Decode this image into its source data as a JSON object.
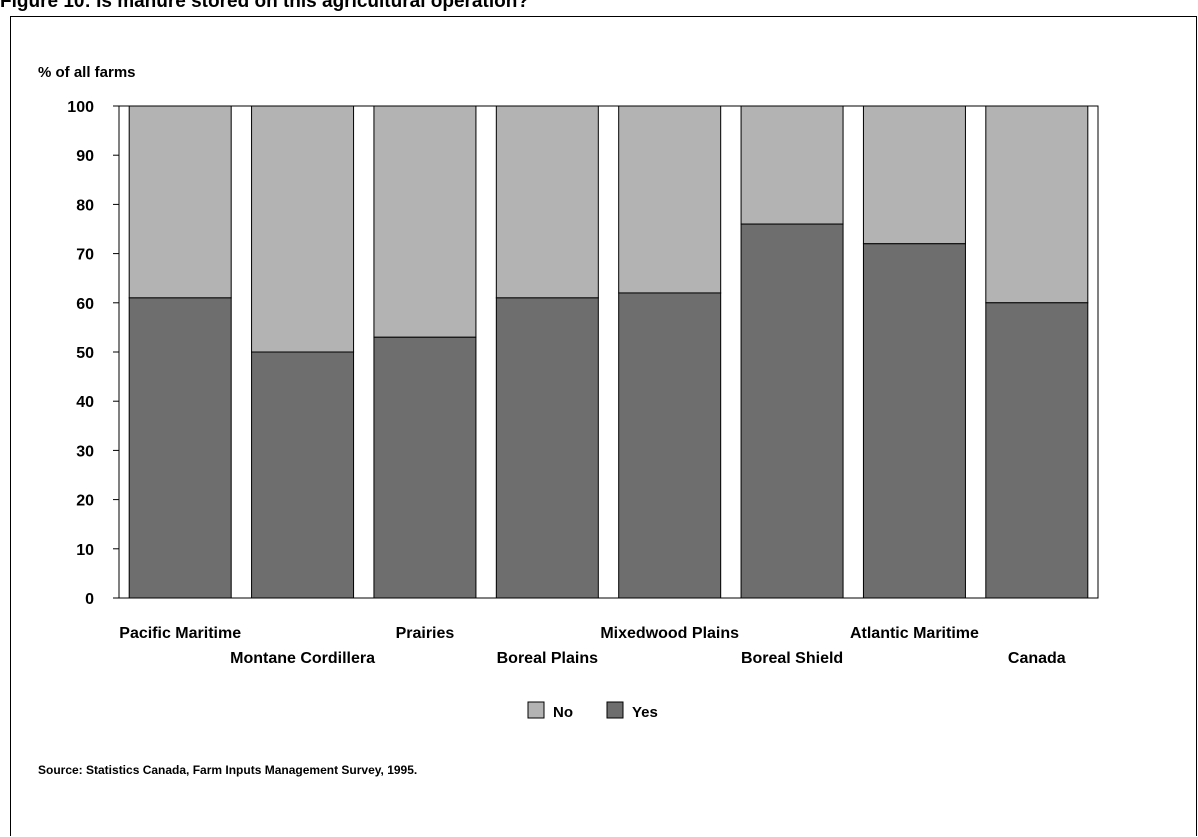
{
  "figure": {
    "title": "Figure 10: Is manure stored on this agricultural operation?",
    "source": "Source: Statistics Canada, Farm Inputs Management Survey, 1995."
  },
  "colors": {
    "no": "#b3b3b3",
    "yes": "#6e6e6e",
    "stroke": "#000000"
  },
  "chart_data": {
    "type": "bar",
    "stacked": true,
    "ylabel": "% of all farms",
    "xlabel": "",
    "ylim": [
      0,
      100
    ],
    "yticks": [
      0,
      10,
      20,
      30,
      40,
      50,
      60,
      70,
      80,
      90,
      100
    ],
    "grid": false,
    "legend_position": "bottom-center",
    "categories": [
      "Pacific Maritime",
      "Montane Cordillera",
      "Prairies",
      "Boreal Plains",
      "Mixedwood Plains",
      "Boreal Shield",
      "Atlantic Maritime",
      "Canada"
    ],
    "series": [
      {
        "name": "Yes",
        "values": [
          61,
          50,
          53,
          61,
          62,
          76,
          72,
          60
        ]
      },
      {
        "name": "No",
        "values": [
          39,
          50,
          47,
          39,
          38,
          24,
          28,
          40
        ]
      }
    ],
    "legend": [
      "No",
      "Yes"
    ]
  }
}
